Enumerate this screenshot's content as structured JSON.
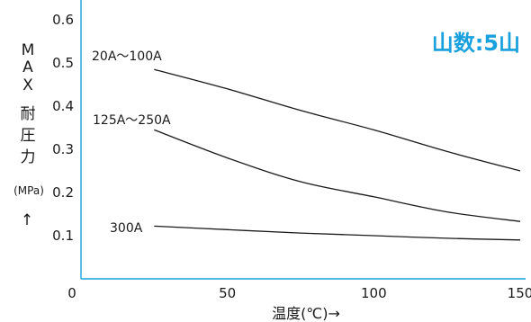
{
  "chart_data": {
    "type": "line",
    "title": "",
    "badge": "山数:5山",
    "xlabel": "温度(℃)→",
    "ylabel_chars": [
      "M",
      "A",
      "X",
      "耐",
      "圧",
      "力"
    ],
    "yunit": "(MPa)",
    "yarrow": "↑",
    "xlim": [
      0,
      150
    ],
    "ylim": [
      0,
      0.6
    ],
    "x_ticks": [
      {
        "value": 0,
        "label": "0"
      },
      {
        "value": 50,
        "label": "50"
      },
      {
        "value": 100,
        "label": "100"
      },
      {
        "value": 150,
        "label": "150"
      }
    ],
    "y_ticks": [
      {
        "value": 0.1,
        "label": "0.1"
      },
      {
        "value": 0.2,
        "label": "0.2"
      },
      {
        "value": 0.3,
        "label": "0.3"
      },
      {
        "value": 0.4,
        "label": "0.4"
      },
      {
        "value": 0.5,
        "label": "0.5"
      },
      {
        "value": 0.6,
        "label": "0.6"
      }
    ],
    "grid": false,
    "legend": "none",
    "series": [
      {
        "name": "20A〜100A",
        "x": [
          25,
          50,
          75,
          100,
          125,
          150
        ],
        "y": [
          0.485,
          0.44,
          0.39,
          0.345,
          0.295,
          0.25
        ]
      },
      {
        "name": "125A〜250A",
        "x": [
          25,
          50,
          75,
          100,
          125,
          150
        ],
        "y": [
          0.345,
          0.28,
          0.225,
          0.19,
          0.155,
          0.133
        ]
      },
      {
        "name": "300A",
        "x": [
          25,
          50,
          75,
          100,
          125,
          150
        ],
        "y": [
          0.122,
          0.114,
          0.106,
          0.1,
          0.094,
          0.09
        ]
      }
    ],
    "colors": {
      "axis": "#1aa0dc",
      "badge": "#1aa0dc",
      "line": "#1a1a1a"
    }
  }
}
